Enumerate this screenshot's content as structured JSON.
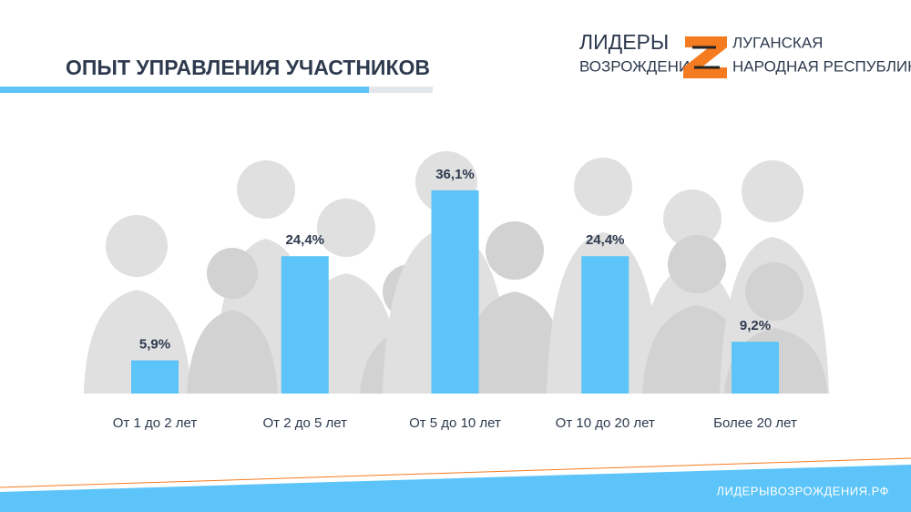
{
  "header": {
    "title": "ОПЫТ УПРАВЛЕНИЯ УЧАСТНИКОВ"
  },
  "logo": {
    "line1": "ЛИДЕРЫ",
    "line2": "ВОЗРОЖДЕНИЯ",
    "region1": "ЛУГАНСКАЯ",
    "region2": "НАРОДНАЯ РЕСПУБЛИКА"
  },
  "footer": {
    "url": "ЛИДЕРЫВОЗРОЖДЕНИЯ.РФ"
  },
  "chart_data": {
    "type": "bar",
    "categories": [
      "От 1 до 2 лет",
      "От 2 до 5 лет",
      "От 5 до 10 лет",
      "От 10 до 20 лет",
      "Более 20 лет"
    ],
    "values": [
      5.9,
      24.4,
      36.1,
      24.4,
      9.2
    ],
    "value_labels": [
      "5,9%",
      "24,4%",
      "36,1%",
      "24,4%",
      "9,2%"
    ],
    "color": "#5cc4f8"
  }
}
